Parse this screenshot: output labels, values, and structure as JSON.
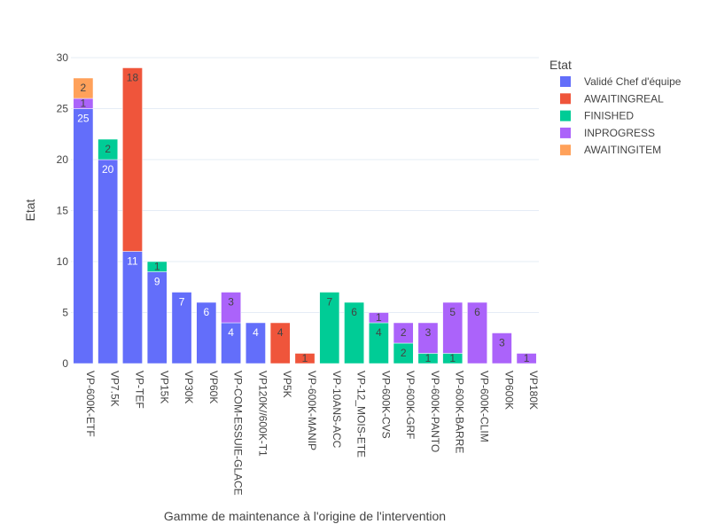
{
  "chart_data": {
    "type": "bar",
    "barmode": "stack",
    "xlabel": "Gamme de maintenance à l'origine de l'intervention",
    "ylabel": "Etat",
    "ylim": [
      0,
      30
    ],
    "yticks": [
      0,
      5,
      10,
      15,
      20,
      25,
      30
    ],
    "grid": true,
    "legend_position": "right",
    "legend_title": "Etat",
    "categories": [
      "VP-600K-ETF",
      "VP7.5K",
      "VP-TEF",
      "VP15K",
      "VP30K",
      "VP60K",
      "VP-COM-ESSUIE-GLACE",
      "VP120K//600K-T1",
      "VP5K",
      "VP-600K-MANIP",
      "VP-10ANS-ACC",
      "VP-12_MOIS-ETE",
      "VP-600K-CVS",
      "VP-600K-GRF",
      "VP-600K-PANTO",
      "VP-600K-BARRE",
      "VP-600K-CLIM",
      "VP600K",
      "VP180K"
    ],
    "series": [
      {
        "name": "Validé Chef d'équipe",
        "color": "#636efa",
        "label_color": "#ffffff",
        "values": [
          25,
          20,
          11,
          9,
          7,
          6,
          4,
          4,
          0,
          0,
          0,
          0,
          0,
          0,
          0,
          0,
          0,
          0,
          0
        ]
      },
      {
        "name": "AWAITINGREAL",
        "color": "#ef553b",
        "label_color": "#444444",
        "values": [
          0,
          0,
          18,
          0,
          0,
          0,
          0,
          0,
          4,
          1,
          0,
          0,
          0,
          0,
          0,
          0,
          0,
          0,
          0
        ]
      },
      {
        "name": "FINISHED",
        "color": "#00cc96",
        "label_color": "#444444",
        "values": [
          0,
          2,
          0,
          1,
          0,
          0,
          0,
          0,
          0,
          0,
          7,
          6,
          4,
          2,
          1,
          1,
          0,
          0,
          0
        ]
      },
      {
        "name": "INPROGRESS",
        "color": "#ab63fa",
        "label_color": "#444444",
        "values": [
          1,
          0,
          0,
          0,
          0,
          0,
          3,
          0,
          0,
          0,
          0,
          0,
          1,
          2,
          3,
          5,
          6,
          3,
          1
        ]
      },
      {
        "name": "AWAITINGITEM",
        "color": "#ffa15a",
        "label_color": "#444444",
        "values": [
          2,
          0,
          0,
          0,
          0,
          0,
          0,
          0,
          0,
          0,
          0,
          0,
          0,
          0,
          0,
          0,
          0,
          0,
          0
        ]
      }
    ]
  }
}
